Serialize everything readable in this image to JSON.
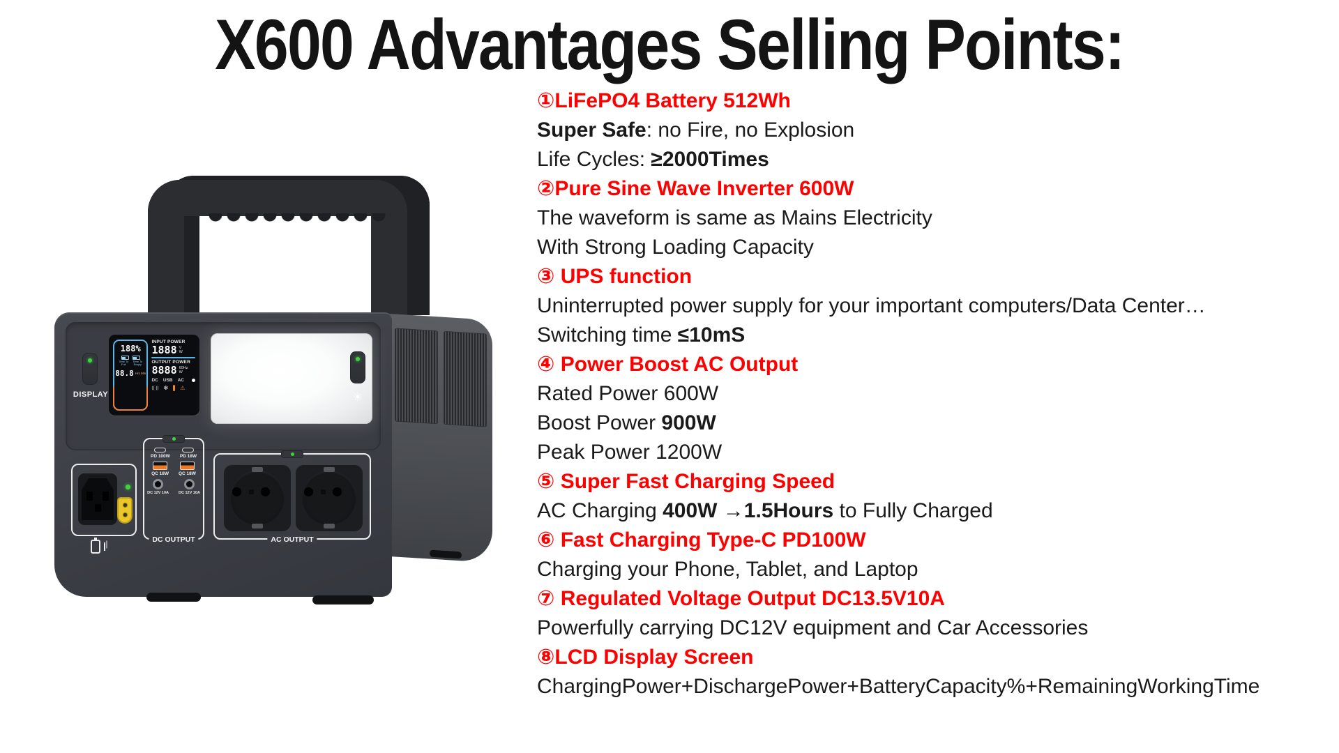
{
  "title": "X600 Advantages Selling Points:",
  "colors": {
    "accent_red": "#ff0000",
    "body_text": "#1a1a1a",
    "device_body": "#3d4046",
    "led_green": "#3ed43e",
    "usb_orange": "#f07820",
    "lcd_blue": "#57b7e8",
    "lcd_orange": "#ef8133",
    "xt60_yellow": "#e9c62c"
  },
  "selling_points": [
    {
      "segments": [
        {
          "text": "①LiFePO4 Battery 512Wh",
          "bold": true,
          "color": "red"
        }
      ]
    },
    {
      "segments": [
        {
          "text": "Super Safe",
          "bold": true
        },
        {
          "text": ": no Fire, no Explosion",
          "bold": false
        }
      ]
    },
    {
      "segments": [
        {
          "text": "Life Cycles: ",
          "bold": false
        },
        {
          "text": "≥2000Times",
          "bold": true
        }
      ]
    },
    {
      "segments": [
        {
          "text": "②Pure Sine Wave Inverter 600W",
          "bold": true,
          "color": "red"
        }
      ]
    },
    {
      "segments": [
        {
          "text": "The waveform is same as Mains Electricity",
          "bold": false
        }
      ]
    },
    {
      "segments": [
        {
          "text": "With Strong Loading Capacity",
          "bold": false
        }
      ]
    },
    {
      "segments": [
        {
          "text": "③ UPS function",
          "bold": true,
          "color": "red"
        }
      ]
    },
    {
      "segments": [
        {
          "text": "Uninterrupted power supply for your important computers/Data Center…",
          "bold": false
        }
      ]
    },
    {
      "segments": [
        {
          "text": "Switching time ",
          "bold": false
        },
        {
          "text": "≤10mS",
          "bold": true
        }
      ]
    },
    {
      "segments": [
        {
          "text": "④ Power Boost AC Output",
          "bold": true,
          "color": "red"
        }
      ]
    },
    {
      "segments": [
        {
          "text": "Rated Power 600W",
          "bold": false
        }
      ]
    },
    {
      "segments": [
        {
          "text": "Boost Power ",
          "bold": false
        },
        {
          "text": "900W",
          "bold": true
        }
      ]
    },
    {
      "segments": [
        {
          "text": "Peak Power 1200W",
          "bold": false
        }
      ]
    },
    {
      "segments": [
        {
          "text": "⑤ Super Fast Charging Speed",
          "bold": true,
          "color": "red"
        }
      ]
    },
    {
      "segments": [
        {
          "text": "AC Charging ",
          "bold": false
        },
        {
          "text": "400W →1.5Hours",
          "bold": true
        },
        {
          "text": " to Fully Charged",
          "bold": false
        }
      ]
    },
    {
      "segments": [
        {
          "text": "⑥ Fast Charging Type-C PD100W",
          "bold": true,
          "color": "red"
        }
      ]
    },
    {
      "segments": [
        {
          "text": "Charging your Phone, Tablet, and Laptop",
          "bold": false
        }
      ]
    },
    {
      "segments": [
        {
          "text": "⑦ Regulated Voltage Output DC13.5V10A",
          "bold": true,
          "color": "red"
        }
      ]
    },
    {
      "segments": [
        {
          "text": "Powerfully carrying DC12V equipment and Car Accessories",
          "bold": false
        }
      ]
    },
    {
      "segments": [
        {
          "text": "⑧LCD Display Screen",
          "bold": true,
          "color": "red"
        }
      ]
    },
    {
      "segments": [
        {
          "text": "ChargingPower+DischargePower+BatteryCapacity%+RemainingWorkingTime",
          "bold": false
        }
      ]
    }
  ],
  "device": {
    "display_button_label": "DISPLAY",
    "lcd": {
      "battery_percent": "188%",
      "time_to_full_label": "Time To Full",
      "time_to_empty_label": "Time To Empty",
      "time_value": "88.8",
      "time_units": "Hrs Min",
      "input_power_label": "INPUT POWER",
      "input_value": "1888",
      "input_unit_v": "V",
      "input_unit_w": "W",
      "output_power_label": "OUTPUT POWER",
      "output_value": "8888",
      "output_freq": "60Hz",
      "output_unit_w": "W",
      "mode_dc": "DC",
      "mode_usb": "USB",
      "mode_ac": "AC",
      "signal_glyph": "((·))"
    },
    "ports": {
      "pd_labels": [
        "PD 100W",
        "PD 18W"
      ],
      "qc_labels": [
        "QC 18W",
        "QC 18W"
      ],
      "dc_labels": [
        "DC 12V 10A",
        "DC 12V 10A"
      ],
      "dc_section_label": "DC OUTPUT",
      "ac_section_label": "AC OUTPUT"
    },
    "icons": {
      "light_button": "light-bulb-icon",
      "charge_input": "charging-plug-icon",
      "fan": "fan-icon",
      "thermometer": "thermometer-icon",
      "warning": "warning-triangle-icon",
      "lamp": "lamp-dot-icon"
    }
  }
}
